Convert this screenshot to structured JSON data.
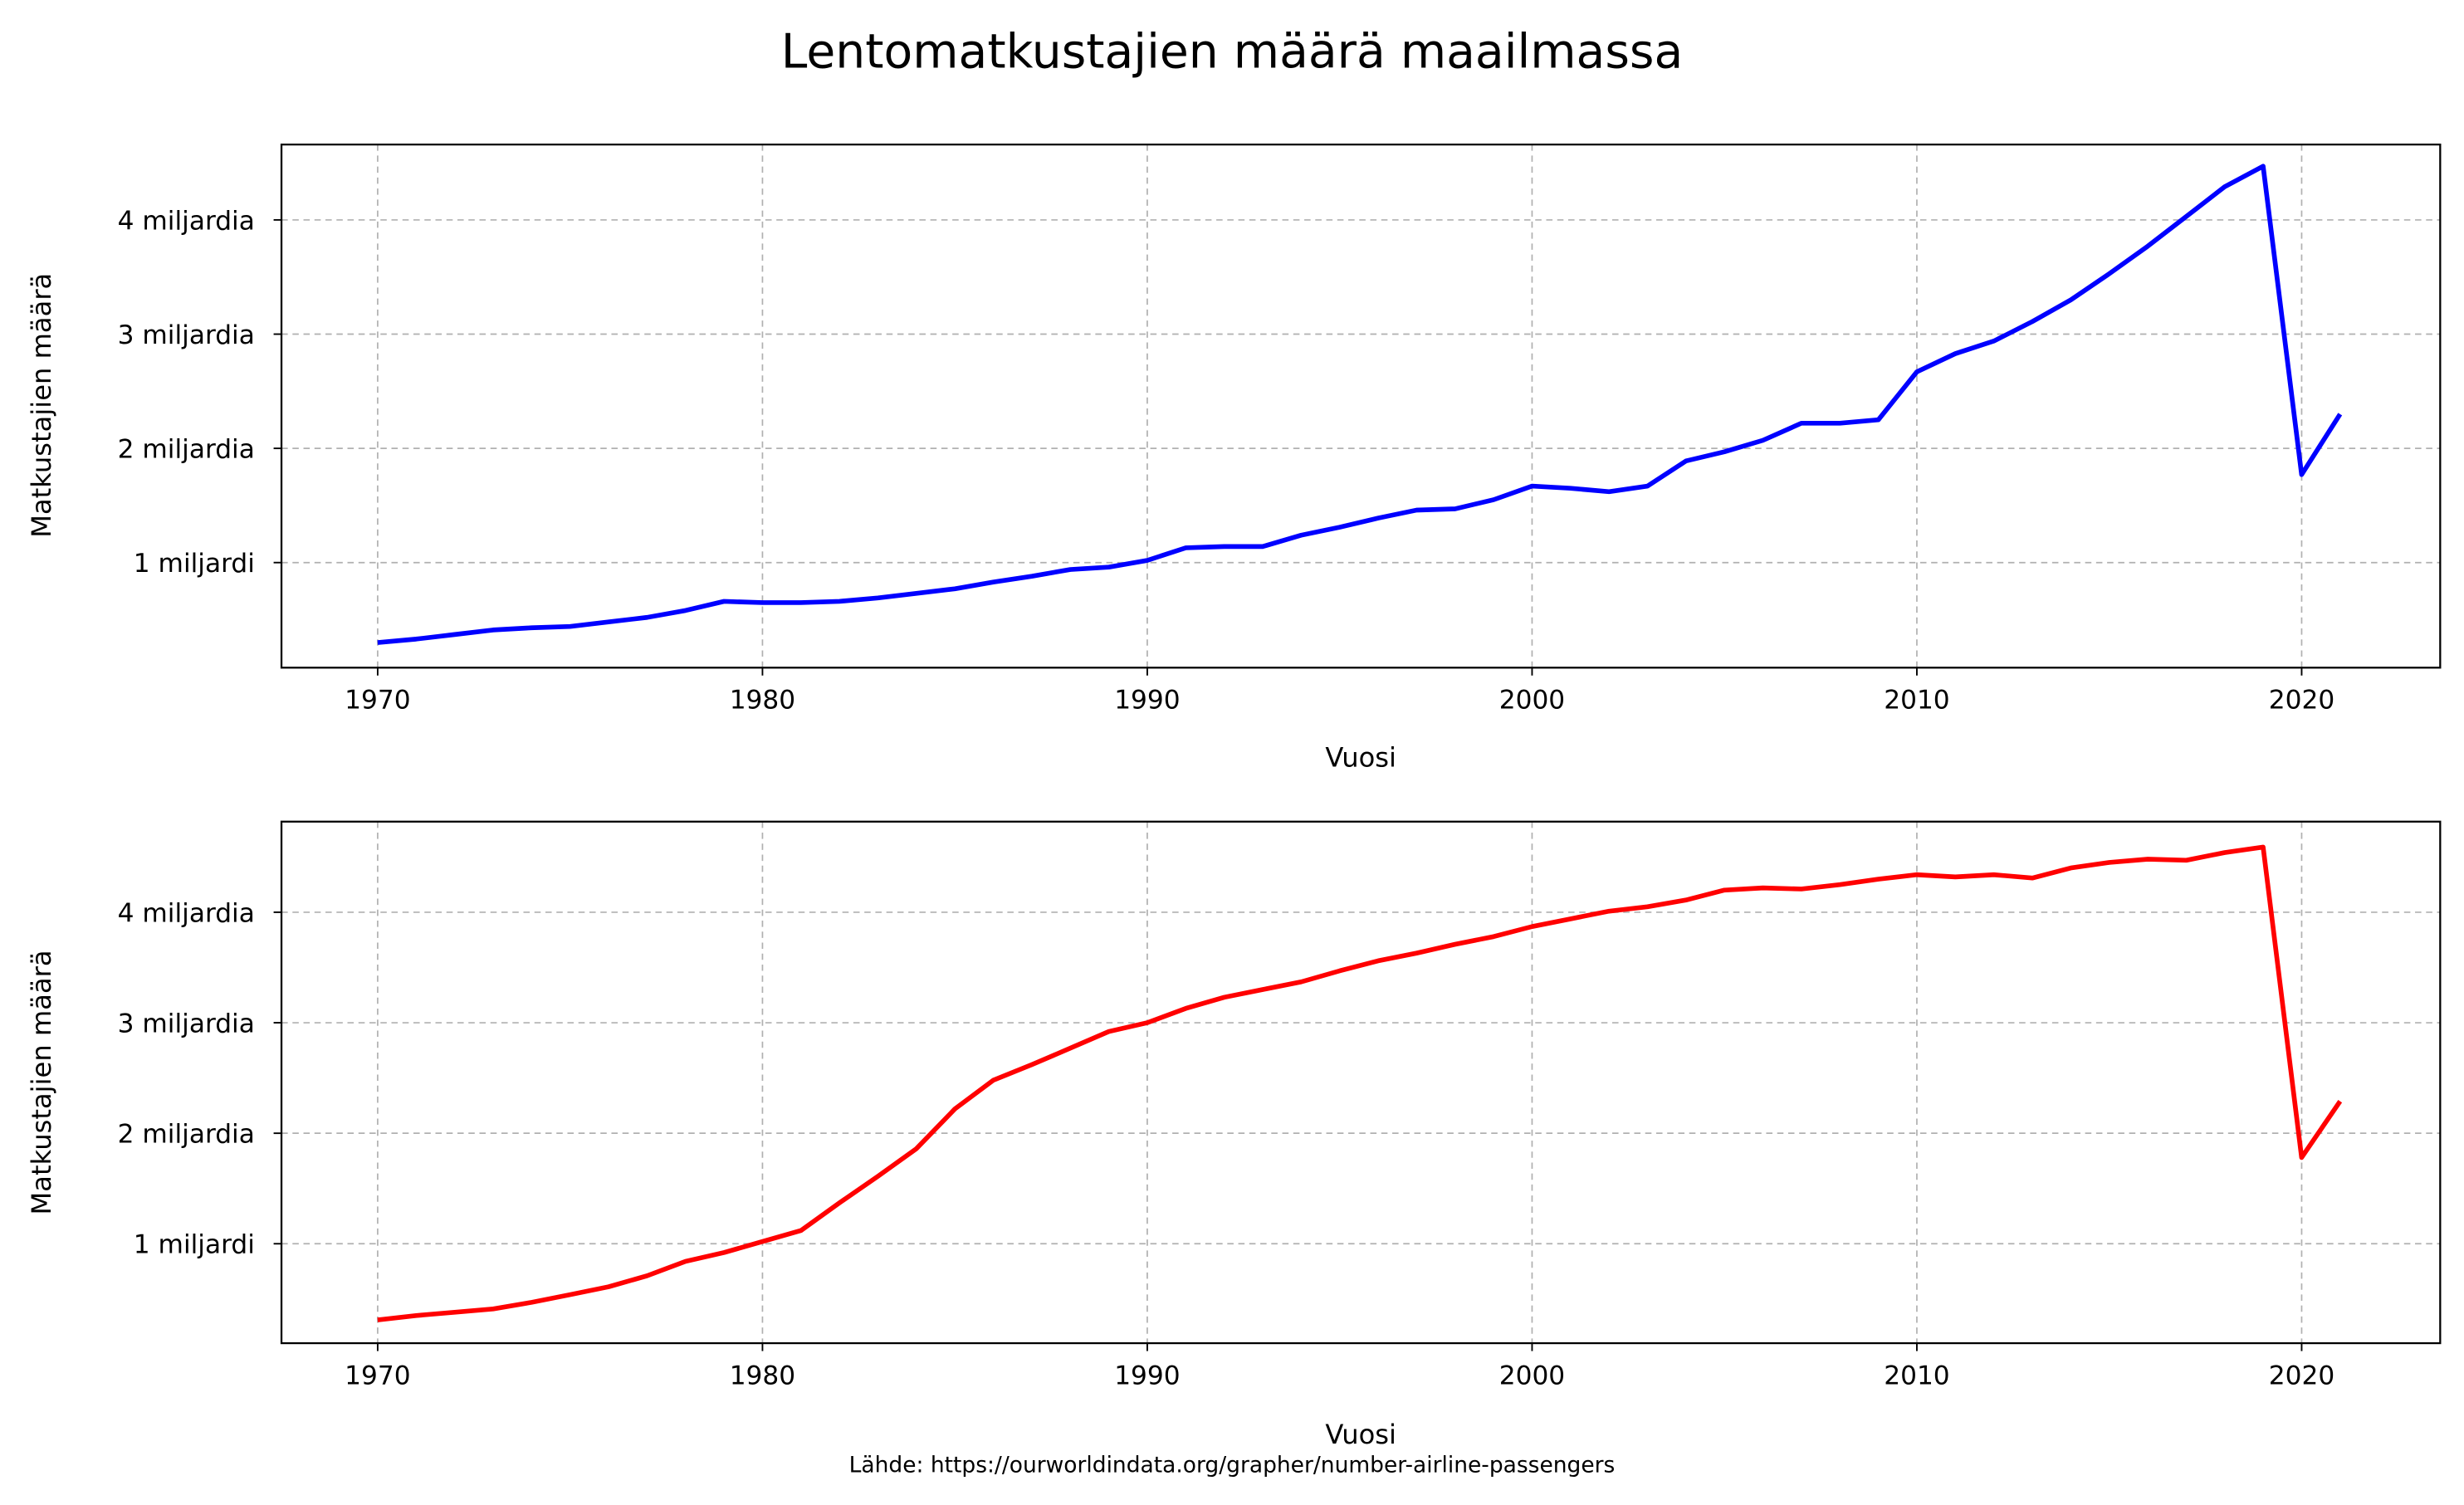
{
  "title": "Lentomatkustajien määrä maailmassa",
  "source": "Lähde: https://ourworldindata.org/grapher/number-airline-passengers",
  "chart_data": [
    {
      "type": "line",
      "xlabel": "Vuosi",
      "ylabel": "Matkustajien määrä",
      "xlim": [
        1967.5,
        2023.6
      ],
      "ylim": [
        0.08,
        4.66
      ],
      "x_ticks": [
        1970,
        1980,
        1990,
        2000,
        2010,
        2020
      ],
      "x_tick_labels": [
        "1970",
        "1980",
        "1990",
        "2000",
        "2010",
        "2020"
      ],
      "y_ticks": [
        1,
        2,
        3,
        4
      ],
      "y_tick_labels": [
        "1 miljardi",
        "2 miljardia",
        "3 miljardia",
        "4 miljardia"
      ],
      "y_unit": "billions",
      "grid": true,
      "color": "#0000ff",
      "x": [
        1970,
        1971,
        1972,
        1973,
        1974,
        1975,
        1976,
        1977,
        1978,
        1979,
        1980,
        1981,
        1982,
        1983,
        1984,
        1985,
        1986,
        1987,
        1988,
        1989,
        1990,
        1991,
        1992,
        1993,
        1994,
        1995,
        1996,
        1997,
        1998,
        1999,
        2000,
        2001,
        2002,
        2003,
        2004,
        2005,
        2006,
        2007,
        2008,
        2009,
        2010,
        2011,
        2012,
        2013,
        2014,
        2015,
        2016,
        2017,
        2018,
        2019,
        2020,
        2021
      ],
      "y": [
        0.3,
        0.33,
        0.37,
        0.41,
        0.43,
        0.44,
        0.48,
        0.52,
        0.58,
        0.66,
        0.65,
        0.65,
        0.66,
        0.69,
        0.73,
        0.77,
        0.83,
        0.88,
        0.94,
        0.96,
        1.02,
        1.13,
        1.14,
        1.14,
        1.24,
        1.31,
        1.39,
        1.46,
        1.47,
        1.55,
        1.67,
        1.65,
        1.62,
        1.67,
        1.89,
        1.97,
        2.07,
        2.22,
        2.22,
        2.25,
        2.67,
        2.83,
        2.94,
        3.11,
        3.3,
        3.53,
        3.77,
        4.03,
        4.29,
        4.47,
        1.77,
        2.3
      ]
    },
    {
      "type": "line",
      "xlabel": "Vuosi",
      "ylabel": "Matkustajien määrä",
      "xlim": [
        1967.5,
        2023.6
      ],
      "ylim": [
        0.1,
        4.82
      ],
      "x_ticks": [
        1970,
        1980,
        1990,
        2000,
        2010,
        2020
      ],
      "x_tick_labels": [
        "1970",
        "1980",
        "1990",
        "2000",
        "2010",
        "2020"
      ],
      "y_ticks": [
        1,
        2,
        3,
        4
      ],
      "y_tick_labels": [
        "1 miljardi",
        "2 miljardia",
        "3 miljardia",
        "4 miljardia"
      ],
      "y_unit": "billions",
      "grid": true,
      "color": "#ff0000",
      "x": [
        1970,
        1971,
        1972,
        1973,
        1974,
        1975,
        1976,
        1977,
        1978,
        1979,
        1980,
        1981,
        1982,
        1983,
        1984,
        1985,
        1986,
        1987,
        1988,
        1989,
        1990,
        1991,
        1992,
        1993,
        1994,
        1995,
        1996,
        1997,
        1998,
        1999,
        2000,
        2001,
        2002,
        2003,
        2004,
        2005,
        2006,
        2007,
        2008,
        2009,
        2010,
        2011,
        2012,
        2013,
        2014,
        2015,
        2016,
        2017,
        2018,
        2019,
        2020,
        2021
      ],
      "y": [
        0.31,
        0.35,
        0.38,
        0.41,
        0.47,
        0.54,
        0.61,
        0.71,
        0.84,
        0.92,
        1.02,
        1.12,
        1.37,
        1.61,
        1.86,
        2.22,
        2.48,
        2.62,
        2.77,
        2.92,
        3.0,
        3.13,
        3.23,
        3.3,
        3.37,
        3.47,
        3.56,
        3.63,
        3.71,
        3.78,
        3.87,
        3.94,
        4.01,
        4.05,
        4.11,
        4.2,
        4.22,
        4.21,
        4.25,
        4.3,
        4.34,
        4.32,
        4.34,
        4.31,
        4.4,
        4.45,
        4.48,
        4.47,
        4.54,
        4.59,
        1.78,
        2.29
      ]
    }
  ]
}
